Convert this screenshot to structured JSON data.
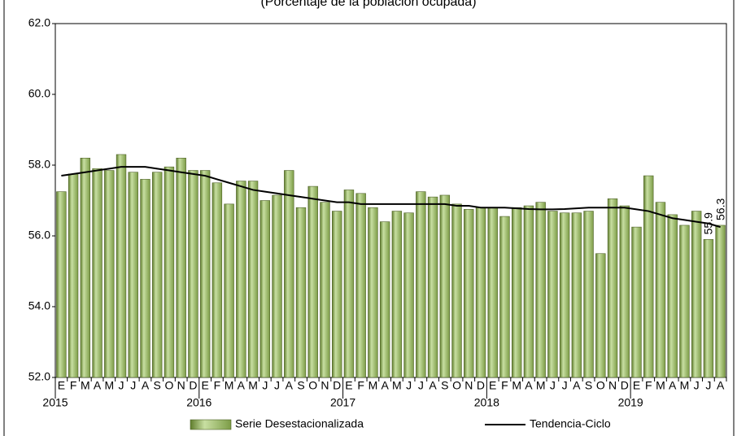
{
  "chart_data": {
    "type": "bar",
    "subtitle": "(Porcentaje de la población ocupada)",
    "categories": [
      "E",
      "F",
      "M",
      "A",
      "M",
      "J",
      "J",
      "A",
      "S",
      "O",
      "N",
      "D",
      "E",
      "F",
      "M",
      "A",
      "M",
      "J",
      "J",
      "A",
      "S",
      "O",
      "N",
      "D",
      "E",
      "F",
      "M",
      "A",
      "M",
      "J",
      "J",
      "A",
      "S",
      "O",
      "N",
      "D",
      "E",
      "F",
      "M",
      "A",
      "M",
      "J",
      "J",
      "A",
      "S",
      "O",
      "N",
      "D",
      "E",
      "F",
      "M",
      "A",
      "M",
      "J",
      "J",
      "A"
    ],
    "years": [
      "2015",
      "2016",
      "2017",
      "2018",
      "2019"
    ],
    "series": [
      {
        "name": "Serie Desestacionalizada",
        "type": "bar",
        "color": "#9bbb59",
        "values": [
          57.25,
          57.75,
          58.2,
          57.9,
          57.85,
          58.3,
          57.8,
          57.6,
          57.8,
          57.95,
          58.2,
          57.85,
          57.85,
          57.5,
          56.9,
          57.55,
          57.55,
          57.0,
          57.15,
          57.85,
          56.8,
          57.4,
          56.95,
          56.7,
          57.3,
          57.2,
          56.8,
          56.4,
          56.7,
          56.65,
          57.25,
          57.1,
          57.15,
          56.9,
          56.75,
          56.8,
          56.8,
          56.55,
          56.8,
          56.85,
          56.95,
          56.7,
          56.65,
          56.65,
          56.7,
          55.5,
          57.05,
          56.85,
          56.25,
          57.7,
          56.95,
          56.6,
          56.3,
          56.7,
          55.9,
          56.3
        ],
        "value_labels": [
          null,
          null,
          null,
          null,
          null,
          null,
          null,
          null,
          null,
          null,
          null,
          null,
          null,
          null,
          null,
          null,
          null,
          null,
          null,
          null,
          null,
          null,
          null,
          null,
          null,
          null,
          null,
          null,
          null,
          null,
          null,
          null,
          null,
          null,
          null,
          null,
          null,
          null,
          null,
          null,
          null,
          null,
          null,
          null,
          null,
          null,
          null,
          null,
          null,
          null,
          null,
          null,
          null,
          null,
          "55.9",
          "56.3"
        ]
      },
      {
        "name": "Tendencia-Ciclo",
        "type": "line",
        "color": "#000000",
        "values": [
          57.7,
          57.75,
          57.8,
          57.85,
          57.9,
          57.95,
          57.95,
          57.95,
          57.9,
          57.85,
          57.8,
          57.75,
          57.7,
          57.6,
          57.5,
          57.4,
          57.3,
          57.25,
          57.2,
          57.15,
          57.1,
          57.05,
          57.0,
          56.95,
          56.95,
          56.9,
          56.9,
          56.9,
          56.9,
          56.9,
          56.9,
          56.9,
          56.9,
          56.85,
          56.85,
          56.8,
          56.8,
          56.8,
          56.78,
          56.76,
          56.75,
          56.75,
          56.76,
          56.78,
          56.8,
          56.8,
          56.8,
          56.8,
          56.75,
          56.7,
          56.6,
          56.5,
          56.45,
          56.4,
          56.35,
          56.25
        ]
      }
    ],
    "ylim": [
      52,
      62
    ],
    "yticks": [
      {
        "value": 52,
        "label": "52.0"
      },
      {
        "value": 54,
        "label": "54.0"
      },
      {
        "value": 56,
        "label": "56.0"
      },
      {
        "value": 58,
        "label": "58.0"
      },
      {
        "value": 60,
        "label": "60.0"
      },
      {
        "value": 62,
        "label": "62.0"
      }
    ]
  }
}
